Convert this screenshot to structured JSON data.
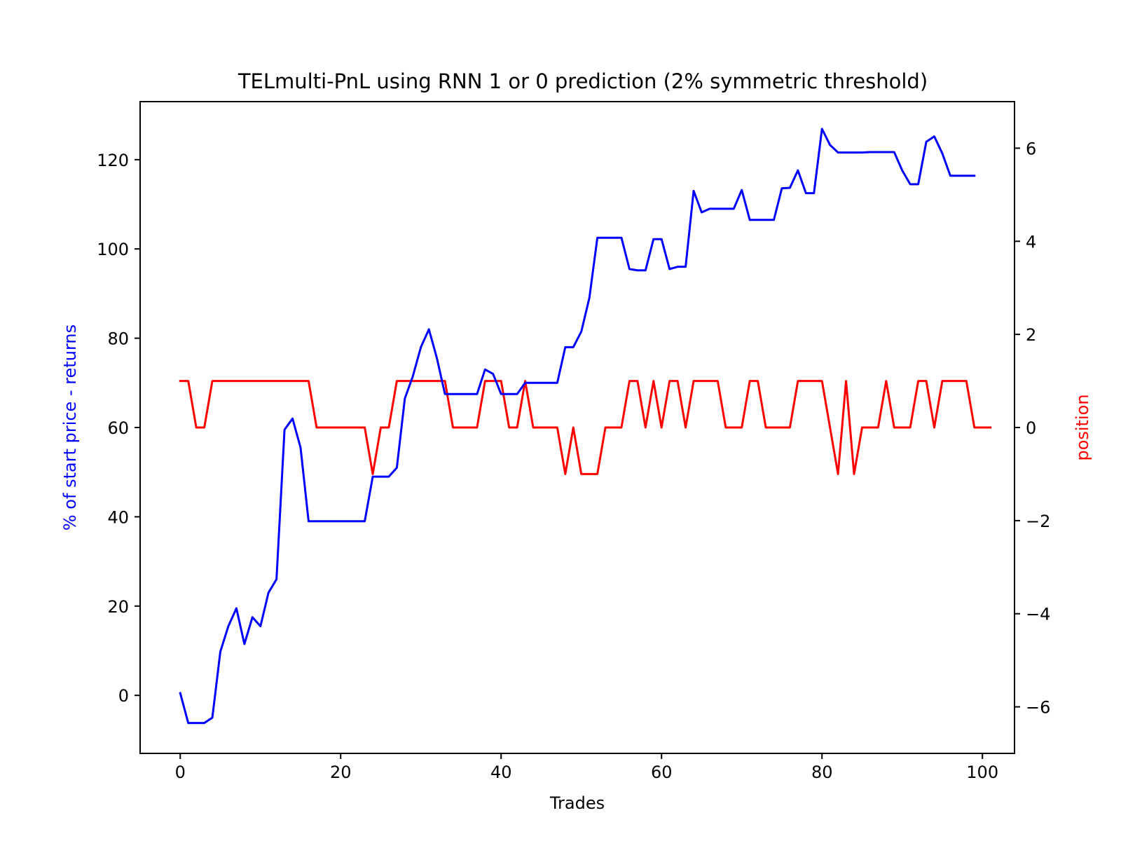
{
  "chart_data": {
    "type": "line",
    "title": "TELmulti-PnL using RNN 1 or 0 prediction (2% symmetric threshold)",
    "xlabel": "Trades",
    "ylabel_left": "% of start price - returns",
    "ylabel_right": "position",
    "xlim": [
      -5,
      104
    ],
    "ylim_left": [
      -13,
      133
    ],
    "ylim_right": [
      -7,
      7
    ],
    "xticks": [
      0,
      20,
      40,
      60,
      80,
      100
    ],
    "yticks_left": [
      0,
      20,
      40,
      60,
      80,
      100,
      120
    ],
    "yticks_right": [
      -6,
      -4,
      -2,
      0,
      2,
      4,
      6
    ],
    "xtick_labels": [
      "0",
      "20",
      "40",
      "60",
      "80",
      "100"
    ],
    "ytick_labels_left": [
      "0",
      "20",
      "40",
      "60",
      "80",
      "100",
      "120"
    ],
    "ytick_labels_right": [
      "−6",
      "−4",
      "−2",
      "0",
      "2",
      "4",
      "6"
    ],
    "grid": false,
    "colors": {
      "returns": "#0000ff",
      "position": "#ff0000"
    },
    "series": [
      {
        "axis": "left",
        "values": [
          0.5,
          -6.2,
          -6.2,
          -6.2,
          -5,
          9.8,
          15.5,
          19.5,
          11.5,
          17.5,
          15.5,
          23,
          26,
          59.5,
          62,
          55.5,
          39,
          39,
          39,
          39,
          39,
          39,
          39,
          39,
          49,
          49,
          49,
          51,
          66.5,
          71.5,
          78,
          82,
          75.5,
          67.5,
          67.5,
          67.5,
          67.5,
          67.5,
          73,
          72,
          67.5,
          67.5,
          67.5,
          70,
          70,
          70,
          70,
          70,
          78,
          78,
          81.5,
          89,
          102.5,
          102.5,
          102.5,
          102.5,
          95.5,
          95.2,
          95.2,
          102.2,
          102.2,
          95.5,
          96,
          96,
          113,
          108.2,
          109,
          109,
          109,
          109,
          113.2,
          106.5,
          106.5,
          106.5,
          106.5,
          113.6,
          113.7,
          117.6,
          112.5,
          112.5,
          126.9,
          123.3,
          121.6,
          121.6,
          121.6,
          121.6,
          121.7,
          121.7,
          121.7,
          121.7,
          117.6,
          114.5,
          114.5,
          124,
          125.2,
          121.4,
          116.4,
          116.4,
          116.4,
          116.4
        ]
      },
      {
        "axis": "right",
        "values": [
          1,
          1,
          0,
          0,
          1,
          1,
          1,
          1,
          1,
          1,
          1,
          1,
          1,
          1,
          1,
          1,
          1,
          0,
          0,
          0,
          0,
          0,
          0,
          0,
          -1,
          0,
          0,
          1,
          1,
          1,
          1,
          1,
          1,
          1,
          0,
          0,
          0,
          0,
          1,
          1,
          1,
          0,
          0,
          1,
          0,
          0,
          0,
          0,
          -1,
          0,
          -1,
          -1,
          -1,
          0,
          0,
          0,
          1,
          1,
          0,
          1,
          0,
          1,
          1,
          0,
          1,
          1,
          1,
          1,
          0,
          0,
          0,
          1,
          1,
          0,
          0,
          0,
          0,
          1,
          1,
          1,
          1,
          0,
          -1,
          1,
          -1,
          0,
          0,
          0,
          1,
          0,
          0,
          0,
          1,
          1,
          0,
          1,
          1,
          1,
          1,
          0,
          0,
          0
        ]
      }
    ]
  }
}
